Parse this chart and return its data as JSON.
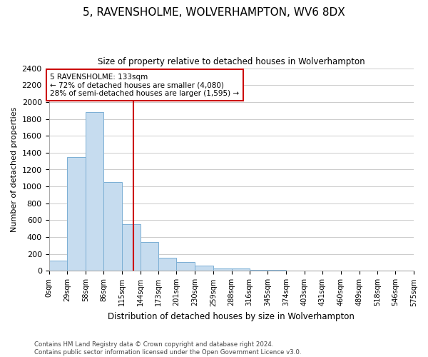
{
  "title": "5, RAVENSHOLME, WOLVERHAMPTON, WV6 8DX",
  "subtitle": "Size of property relative to detached houses in Wolverhampton",
  "xlabel": "Distribution of detached houses by size in Wolverhampton",
  "ylabel": "Number of detached properties",
  "bar_color": "#c6dcef",
  "bar_edge_color": "#7bafd4",
  "bin_edges": [
    0,
    29,
    58,
    86,
    115,
    144,
    173,
    201,
    230,
    259,
    288,
    316,
    345,
    374,
    403,
    431,
    460,
    489,
    518,
    546,
    575
  ],
  "bar_heights": [
    120,
    1350,
    1880,
    1050,
    550,
    340,
    160,
    105,
    60,
    30,
    25,
    15,
    8,
    5,
    3,
    2,
    1,
    1,
    1,
    1
  ],
  "tick_labels": [
    "0sqm",
    "29sqm",
    "58sqm",
    "86sqm",
    "115sqm",
    "144sqm",
    "173sqm",
    "201sqm",
    "230sqm",
    "259sqm",
    "288sqm",
    "316sqm",
    "345sqm",
    "374sqm",
    "403sqm",
    "431sqm",
    "460sqm",
    "489sqm",
    "518sqm",
    "546sqm",
    "575sqm"
  ],
  "reference_line_x": 133,
  "ylim": [
    0,
    2400
  ],
  "yticks": [
    0,
    200,
    400,
    600,
    800,
    1000,
    1200,
    1400,
    1600,
    1800,
    2000,
    2200,
    2400
  ],
  "annotation_line1": "5 RAVENSHOLME: 133sqm",
  "annotation_line2": "← 72% of detached houses are smaller (4,080)",
  "annotation_line3": "28% of semi-detached houses are larger (1,595) →",
  "footer_line1": "Contains HM Land Registry data © Crown copyright and database right 2024.",
  "footer_line2": "Contains public sector information licensed under the Open Government Licence v3.0.",
  "annotation_box_color": "#ffffff",
  "annotation_border_color": "#cc0000",
  "vline_color": "#cc0000",
  "background_color": "#ffffff",
  "grid_color": "#cccccc"
}
